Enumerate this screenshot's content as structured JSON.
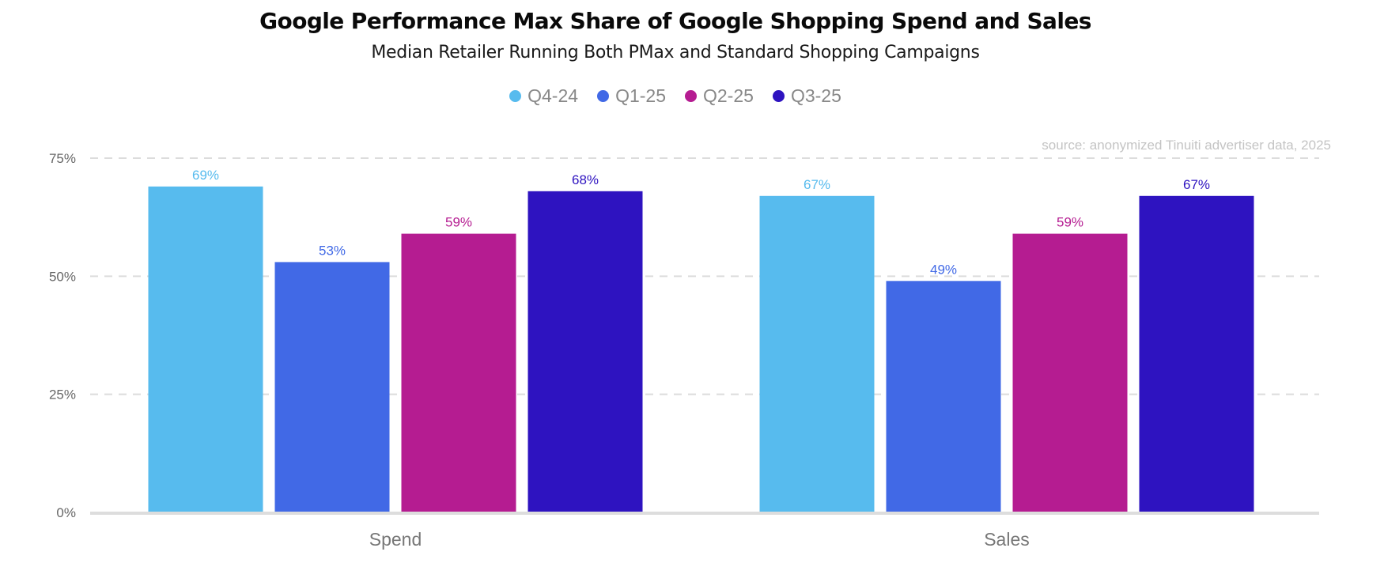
{
  "title": "Google Performance Max Share of Google Shopping Spend and Sales",
  "subtitle": "Median Retailer Running Both PMax and Standard Shopping Campaigns",
  "source": "source: anonymized Tinuiti advertiser data, 2025",
  "colors": {
    "Q4-24": "#57bbee",
    "Q1-25": "#4169e6",
    "Q2-25": "#b51c91",
    "Q3-25": "#2e13c0",
    "grid": "#dcdcdc",
    "baseline": "#dddddd",
    "tick_text": "#666666",
    "category_text": "#777777"
  },
  "legend": [
    {
      "label": "Q4-24",
      "color": "#57bbee"
    },
    {
      "label": "Q1-25",
      "color": "#4169e6"
    },
    {
      "label": "Q2-25",
      "color": "#b51c91"
    },
    {
      "label": "Q3-25",
      "color": "#2e13c0"
    }
  ],
  "chart_data": {
    "type": "bar",
    "title": "Google Performance Max Share of Google Shopping Spend and Sales",
    "subtitle": "Median Retailer Running Both PMax and Standard Shopping Campaigns",
    "categories": [
      "Spend",
      "Sales"
    ],
    "series": [
      {
        "name": "Q4-24",
        "values": [
          69,
          67
        ],
        "labels": [
          "69%",
          "67%"
        ]
      },
      {
        "name": "Q1-25",
        "values": [
          53,
          49
        ],
        "labels": [
          "53%",
          "49%"
        ]
      },
      {
        "name": "Q2-25",
        "values": [
          59,
          59
        ],
        "labels": [
          "59%",
          "59%"
        ]
      },
      {
        "name": "Q3-25",
        "values": [
          68,
          67
        ],
        "labels": [
          "68%",
          "67%"
        ]
      }
    ],
    "y_ticks": [
      0,
      25,
      50,
      75
    ],
    "y_tick_labels": [
      "0%",
      "25%",
      "50%",
      "75%"
    ],
    "ylim": [
      0,
      75
    ],
    "xlabel": "",
    "ylabel": "",
    "grid": true,
    "legend_position": "top-center",
    "annotation": "source: anonymized Tinuiti advertiser data, 2025"
  }
}
